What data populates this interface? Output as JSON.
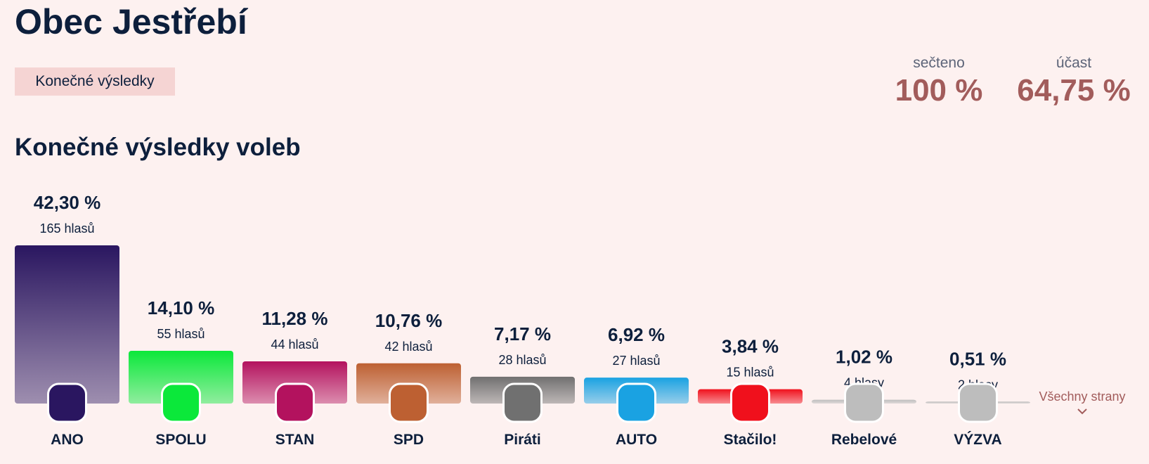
{
  "header": {
    "title": "Obec Jestřebí",
    "badge": "Konečné výsledky"
  },
  "stats": [
    {
      "label": "sečteno",
      "value": "100 %"
    },
    {
      "label": "účast",
      "value": "64,75 %"
    }
  ],
  "chart_data": {
    "type": "bar",
    "title": "Konečné výsledky voleb",
    "categories": [
      "ANO",
      "SPOLU",
      "STAN",
      "SPD",
      "Piráti",
      "AUTO",
      "Stačilo!",
      "Rebelové",
      "VÝZVA"
    ],
    "values": [
      42.3,
      14.1,
      11.28,
      10.76,
      7.17,
      6.92,
      3.84,
      1.02,
      0.51
    ],
    "value_labels": [
      "42,30 %",
      "14,10 %",
      "11,28 %",
      "10,76 %",
      "7,17 %",
      "6,92 %",
      "3,84 %",
      "1,02 %",
      "0,51 %"
    ],
    "vote_labels": [
      "165 hlasů",
      "55 hlasů",
      "44 hlasů",
      "42 hlasů",
      "28 hlasů",
      "27 hlasů",
      "15 hlasů",
      "4 hlasy",
      "2 hlasy"
    ],
    "colors": [
      "#2a1660",
      "#0be83a",
      "#b3125e",
      "#bd6032",
      "#707070",
      "#1aa2e2",
      "#f0101c",
      "#bdbdbd",
      "#bdbdbd"
    ],
    "more_link": "Všechny strany"
  }
}
